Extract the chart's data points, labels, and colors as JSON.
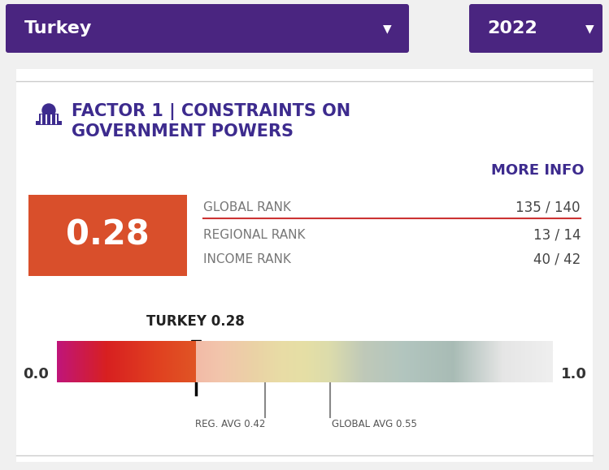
{
  "bg_color": "#f0f0f0",
  "header_bg": "#4a2580",
  "header_text": "Turkey",
  "header_year": "2022",
  "header_text_color": "#ffffff",
  "body_bg": "#ffffff",
  "title_line1": "FACTOR 1 | CONSTRAINTS ON",
  "title_line2": "GOVERNMENT POWERS",
  "title_color": "#3d2b8e",
  "more_info_text": "MORE INFO",
  "more_info_color": "#3d2b8e",
  "score_box_color": "#d94f2b",
  "score_value": "0.28",
  "score_text_color": "#ffffff",
  "global_rank_label": "GLOBAL RANK",
  "global_rank_value": "135 / 140",
  "regional_rank_label": "REGIONAL RANK",
  "regional_rank_value": "13 / 14",
  "income_rank_label": "INCOME RANK",
  "income_rank_value": "40 / 42",
  "rank_label_color": "#777777",
  "rank_value_color": "#444444",
  "global_rank_line_color": "#cc3333",
  "bar_label": "TURKEY 0.28",
  "bar_turkey_value": 0.28,
  "bar_reg_avg": 0.42,
  "bar_global_avg": 0.55,
  "bar_reg_label": "REG. AVG 0.42",
  "bar_global_label": "GLOBAL AVG 0.55",
  "bar_label_color": "#222222",
  "bar_left_label": "0.0",
  "bar_right_label": "1.0",
  "grad_colors": [
    [
      0.0,
      "#c0157a"
    ],
    [
      0.1,
      "#d82020"
    ],
    [
      0.2,
      "#e04020"
    ],
    [
      0.28,
      "#e05525"
    ],
    [
      0.33,
      "#e07030"
    ],
    [
      0.4,
      "#cc9020"
    ],
    [
      0.45,
      "#c8a820"
    ],
    [
      0.5,
      "#c0b020"
    ],
    [
      0.55,
      "#a8a830"
    ],
    [
      0.62,
      "#607850"
    ],
    [
      0.7,
      "#407060"
    ],
    [
      0.8,
      "#285848"
    ],
    [
      0.9,
      "#c0c0c0"
    ],
    [
      1.0,
      "#d8d8d8"
    ]
  ]
}
